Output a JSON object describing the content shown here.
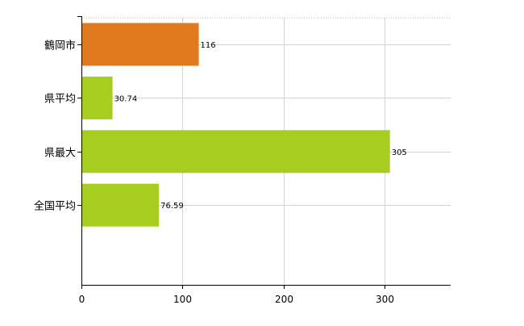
{
  "chart_data": {
    "type": "bar",
    "orientation": "horizontal",
    "categories": [
      "鶴岡市",
      "県平均",
      "県最大",
      "全国平均"
    ],
    "values": [
      116,
      30.74,
      305,
      76.59
    ],
    "value_labels": [
      "116",
      "30.74",
      "305",
      "76.59"
    ],
    "bar_colors": [
      "#e07a1f",
      "#a6cd1f",
      "#a6cd1f",
      "#a6cd1f"
    ],
    "title": "",
    "xlabel": "",
    "ylabel": "",
    "xlim": [
      0,
      365
    ],
    "x_ticks": [
      0,
      100,
      200,
      300
    ],
    "x_tick_labels": [
      "0",
      "100",
      "200",
      "300"
    ],
    "grid": true,
    "legend": "none"
  },
  "colors": {
    "highlight": "#e07a1f",
    "default_bar": "#a6cd1f",
    "grid": "#d3d3d3",
    "axis": "#000000"
  }
}
